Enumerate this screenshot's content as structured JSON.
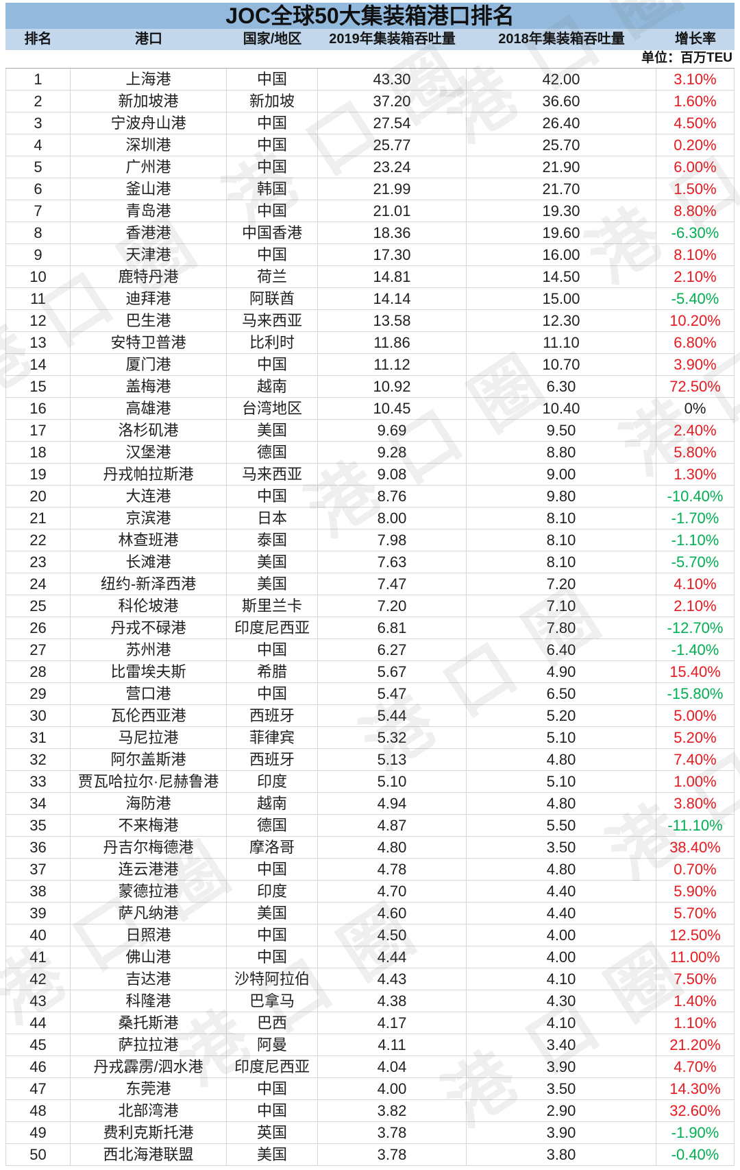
{
  "title": "JOC全球50大集装箱港口排名",
  "unit_note": "单位：百万TEU",
  "watermark": "港口圈",
  "colors": {
    "title_bg": "#93BADD",
    "header_bg": "#C2D7EB",
    "positive": "#E8191F",
    "negative": "#00B050",
    "neutral": "#1F1F1F"
  },
  "chart_data": {
    "type": "table",
    "title": "JOC全球50大集装箱港口排名",
    "unit": "百万TEU",
    "columns": [
      "排名",
      "港口",
      "国家/地区",
      "2019年集装箱吞吐量",
      "2018年集装箱吞吐量",
      "增长率"
    ],
    "rows": [
      [
        "1",
        "上海港",
        "中国",
        "43.30",
        "42.00",
        "3.10%"
      ],
      [
        "2",
        "新加坡港",
        "新加坡",
        "37.20",
        "36.60",
        "1.60%"
      ],
      [
        "3",
        "宁波舟山港",
        "中国",
        "27.54",
        "26.40",
        "4.50%"
      ],
      [
        "4",
        "深圳港",
        "中国",
        "25.77",
        "25.70",
        "0.20%"
      ],
      [
        "5",
        "广州港",
        "中国",
        "23.24",
        "21.90",
        "6.00%"
      ],
      [
        "6",
        "釜山港",
        "韩国",
        "21.99",
        "21.70",
        "1.50%"
      ],
      [
        "7",
        "青岛港",
        "中国",
        "21.01",
        "19.30",
        "8.80%"
      ],
      [
        "8",
        "香港港",
        "中国香港",
        "18.36",
        "19.60",
        "-6.30%"
      ],
      [
        "9",
        "天津港",
        "中国",
        "17.30",
        "16.00",
        "8.10%"
      ],
      [
        "10",
        "鹿特丹港",
        "荷兰",
        "14.81",
        "14.50",
        "2.10%"
      ],
      [
        "11",
        "迪拜港",
        "阿联酋",
        "14.14",
        "15.00",
        "-5.40%"
      ],
      [
        "12",
        "巴生港",
        "马来西亚",
        "13.58",
        "12.30",
        "10.20%"
      ],
      [
        "13",
        "安特卫普港",
        "比利时",
        "11.86",
        "11.10",
        "6.80%"
      ],
      [
        "14",
        "厦门港",
        "中国",
        "11.12",
        "10.70",
        "3.90%"
      ],
      [
        "15",
        "盖梅港",
        "越南",
        "10.92",
        "6.30",
        "72.50%"
      ],
      [
        "16",
        "高雄港",
        "台湾地区",
        "10.45",
        "10.40",
        "0%"
      ],
      [
        "17",
        "洛杉矶港",
        "美国",
        "9.69",
        "9.50",
        "2.40%"
      ],
      [
        "18",
        "汉堡港",
        "德国",
        "9.28",
        "8.80",
        "5.80%"
      ],
      [
        "19",
        "丹戎帕拉斯港",
        "马来西亚",
        "9.08",
        "9.00",
        "1.30%"
      ],
      [
        "20",
        "大连港",
        "中国",
        "8.76",
        "9.80",
        "-10.40%"
      ],
      [
        "21",
        "京滨港",
        "日本",
        "8.00",
        "8.10",
        "-1.70%"
      ],
      [
        "22",
        "林查班港",
        "泰国",
        "7.98",
        "8.10",
        "-1.10%"
      ],
      [
        "23",
        "长滩港",
        "美国",
        "7.63",
        "8.10",
        "-5.70%"
      ],
      [
        "24",
        "纽约-新泽西港",
        "美国",
        "7.47",
        "7.20",
        "4.10%"
      ],
      [
        "25",
        "科伦坡港",
        "斯里兰卡",
        "7.20",
        "7.10",
        "2.10%"
      ],
      [
        "26",
        "丹戎不碌港",
        "印度尼西亚",
        "6.81",
        "7.80",
        "-12.70%"
      ],
      [
        "27",
        "苏州港",
        "中国",
        "6.27",
        "6.40",
        "-1.40%"
      ],
      [
        "28",
        "比雷埃夫斯",
        "希腊",
        "5.67",
        "4.90",
        "15.40%"
      ],
      [
        "29",
        "营口港",
        "中国",
        "5.47",
        "6.50",
        "-15.80%"
      ],
      [
        "30",
        "瓦伦西亚港",
        "西班牙",
        "5.44",
        "5.20",
        "5.00%"
      ],
      [
        "31",
        "马尼拉港",
        "菲律宾",
        "5.32",
        "5.10",
        "5.20%"
      ],
      [
        "32",
        "阿尔盖斯港",
        "西班牙",
        "5.13",
        "4.80",
        "7.40%"
      ],
      [
        "33",
        "贾瓦哈拉尔·尼赫鲁港",
        "印度",
        "5.10",
        "5.10",
        "1.00%"
      ],
      [
        "34",
        "海防港",
        "越南",
        "4.94",
        "4.80",
        "3.80%"
      ],
      [
        "35",
        "不来梅港",
        "德国",
        "4.87",
        "5.50",
        "-11.10%"
      ],
      [
        "36",
        "丹吉尔梅德港",
        "摩洛哥",
        "4.80",
        "3.50",
        "38.40%"
      ],
      [
        "37",
        "连云港港",
        "中国",
        "4.78",
        "4.80",
        "0.70%"
      ],
      [
        "38",
        "蒙德拉港",
        "印度",
        "4.70",
        "4.40",
        "5.90%"
      ],
      [
        "39",
        "萨凡纳港",
        "美国",
        "4.60",
        "4.40",
        "5.70%"
      ],
      [
        "40",
        "日照港",
        "中国",
        "4.50",
        "4.00",
        "12.50%"
      ],
      [
        "41",
        "佛山港",
        "中国",
        "4.44",
        "4.00",
        "11.00%"
      ],
      [
        "42",
        "吉达港",
        "沙特阿拉伯",
        "4.43",
        "4.10",
        "7.50%"
      ],
      [
        "43",
        "科隆港",
        "巴拿马",
        "4.38",
        "4.30",
        "1.40%"
      ],
      [
        "44",
        "桑托斯港",
        "巴西",
        "4.17",
        "4.10",
        "1.10%"
      ],
      [
        "45",
        "萨拉拉港",
        "阿曼",
        "4.11",
        "3.40",
        "21.20%"
      ],
      [
        "46",
        "丹戎霹雳/泗水港",
        "印度尼西亚",
        "4.04",
        "3.90",
        "4.70%"
      ],
      [
        "47",
        "东莞港",
        "中国",
        "4.00",
        "3.50",
        "14.30%"
      ],
      [
        "48",
        "北部湾港",
        "中国",
        "3.82",
        "2.90",
        "32.60%"
      ],
      [
        "49",
        "费利克斯托港",
        "英国",
        "3.78",
        "3.90",
        "-1.90%"
      ],
      [
        "50",
        "西北海港联盟",
        "美国",
        "3.78",
        "3.80",
        "-0.40%"
      ]
    ]
  }
}
